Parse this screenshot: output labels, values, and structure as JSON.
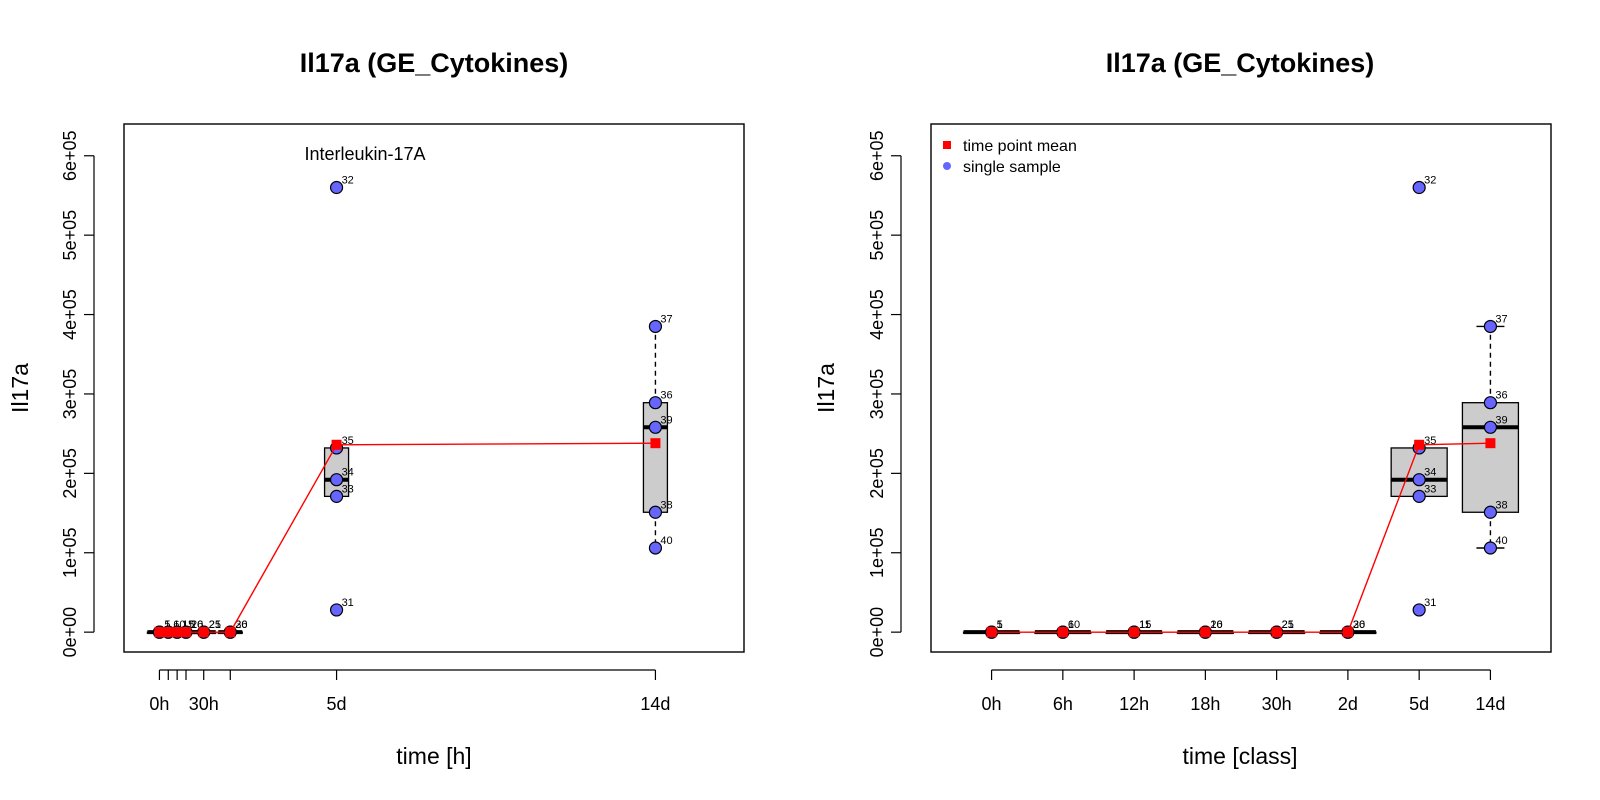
{
  "chart_data": [
    {
      "type": "scatter",
      "title": "Il17a (GE_Cytokines)",
      "xlabel": "time [h]",
      "ylabel": "Il17a",
      "annotation": "Interleukin-17A",
      "x_unit": "hours",
      "xlim": [
        -24,
        396
      ],
      "ylim": [
        -25000,
        640000
      ],
      "x_ticks": [
        0,
        6,
        12,
        18,
        30,
        48,
        120,
        336
      ],
      "x_tick_labels": [
        {
          "x": 0,
          "label": "0h"
        },
        {
          "x": 30,
          "label": "30h"
        },
        {
          "x": 120,
          "label": "5d"
        },
        {
          "x": 336,
          "label": "14d"
        }
      ],
      "y_ticks": [
        0,
        100000,
        200000,
        300000,
        400000,
        500000,
        600000
      ],
      "y_tick_labels": [
        "0e+00",
        "1e+05",
        "2e+05",
        "3e+05",
        "4e+05",
        "5e+05",
        "6e+05"
      ],
      "samples": [
        {
          "x": 0,
          "y": 0,
          "label": "5"
        },
        {
          "x": 0,
          "y": 0,
          "label": "1"
        },
        {
          "x": 6,
          "y": 0,
          "label": "10"
        },
        {
          "x": 6,
          "y": 0,
          "label": "6"
        },
        {
          "x": 12,
          "y": 0,
          "label": "15"
        },
        {
          "x": 12,
          "y": 0,
          "label": "11"
        },
        {
          "x": 18,
          "y": 0,
          "label": "20"
        },
        {
          "x": 18,
          "y": 0,
          "label": "16"
        },
        {
          "x": 30,
          "y": 0,
          "label": "25"
        },
        {
          "x": 30,
          "y": 0,
          "label": "21"
        },
        {
          "x": 48,
          "y": 0,
          "label": "30"
        },
        {
          "x": 48,
          "y": 0,
          "label": "26"
        },
        {
          "x": 120,
          "y": 560000,
          "label": "32"
        },
        {
          "x": 120,
          "y": 232000,
          "label": "35"
        },
        {
          "x": 120,
          "y": 192000,
          "label": "34"
        },
        {
          "x": 120,
          "y": 171000,
          "label": "33"
        },
        {
          "x": 120,
          "y": 28000,
          "label": "31"
        },
        {
          "x": 336,
          "y": 385000,
          "label": "37"
        },
        {
          "x": 336,
          "y": 289000,
          "label": "36"
        },
        {
          "x": 336,
          "y": 258000,
          "label": "39"
        },
        {
          "x": 336,
          "y": 151000,
          "label": "38"
        },
        {
          "x": 336,
          "y": 106000,
          "label": "40"
        }
      ],
      "boxes": [
        {
          "x": 0,
          "q1": 0,
          "median": 0,
          "q3": 0,
          "wlo": 0,
          "whi": 0
        },
        {
          "x": 6,
          "q1": 0,
          "median": 0,
          "q3": 0,
          "wlo": 0,
          "whi": 0
        },
        {
          "x": 12,
          "q1": 0,
          "median": 0,
          "q3": 0,
          "wlo": 0,
          "whi": 0
        },
        {
          "x": 18,
          "q1": 0,
          "median": 0,
          "q3": 0,
          "wlo": 0,
          "whi": 0
        },
        {
          "x": 30,
          "q1": 0,
          "median": 0,
          "q3": 0,
          "wlo": 0,
          "whi": 0
        },
        {
          "x": 48,
          "q1": 0,
          "median": 0,
          "q3": 0,
          "wlo": 0,
          "whi": 0
        },
        {
          "x": 120,
          "q1": 171000,
          "median": 192000,
          "q3": 232000,
          "wlo": 171000,
          "whi": 232000
        },
        {
          "x": 336,
          "q1": 151000,
          "median": 258000,
          "q3": 289000,
          "wlo": 106000,
          "whi": 385000
        }
      ],
      "means": [
        {
          "x": 0,
          "y": 0
        },
        {
          "x": 6,
          "y": 0
        },
        {
          "x": 12,
          "y": 0
        },
        {
          "x": 18,
          "y": 0
        },
        {
          "x": 30,
          "y": 0
        },
        {
          "x": 48,
          "y": 0
        },
        {
          "x": 120,
          "y": 236000
        },
        {
          "x": 336,
          "y": 238000
        }
      ],
      "colors": {
        "sample": "#6666ff",
        "mean": "#ff0000",
        "box": "#cccccc"
      }
    },
    {
      "type": "box",
      "title": "Il17a (GE_Cytokines)",
      "xlabel": "time [class]",
      "ylabel": "Il17a",
      "categories": [
        "0h",
        "6h",
        "12h",
        "18h",
        "30h",
        "2d",
        "5d",
        "14d"
      ],
      "xlim": [
        0.15,
        8.85
      ],
      "ylim": [
        -25000,
        640000
      ],
      "y_ticks": [
        0,
        100000,
        200000,
        300000,
        400000,
        500000,
        600000
      ],
      "y_tick_labels": [
        "0e+00",
        "1e+05",
        "2e+05",
        "3e+05",
        "4e+05",
        "5e+05",
        "6e+05"
      ],
      "legend": {
        "position": "top-left",
        "entries": [
          {
            "label": "time point mean",
            "marker": "square",
            "color": "#ff0000"
          },
          {
            "label": "single sample",
            "marker": "circle",
            "color": "#6666ff"
          }
        ]
      },
      "samples": [
        {
          "x": 1,
          "y": 0,
          "label": "5"
        },
        {
          "x": 1,
          "y": 0,
          "label": "1"
        },
        {
          "x": 2,
          "y": 0,
          "label": "10"
        },
        {
          "x": 2,
          "y": 0,
          "label": "6"
        },
        {
          "x": 3,
          "y": 0,
          "label": "15"
        },
        {
          "x": 3,
          "y": 0,
          "label": "11"
        },
        {
          "x": 4,
          "y": 0,
          "label": "20"
        },
        {
          "x": 4,
          "y": 0,
          "label": "16"
        },
        {
          "x": 5,
          "y": 0,
          "label": "25"
        },
        {
          "x": 5,
          "y": 0,
          "label": "21"
        },
        {
          "x": 6,
          "y": 0,
          "label": "30"
        },
        {
          "x": 6,
          "y": 0,
          "label": "26"
        },
        {
          "x": 7,
          "y": 560000,
          "label": "32"
        },
        {
          "x": 7,
          "y": 232000,
          "label": "35"
        },
        {
          "x": 7,
          "y": 192000,
          "label": "34"
        },
        {
          "x": 7,
          "y": 171000,
          "label": "33"
        },
        {
          "x": 7,
          "y": 28000,
          "label": "31"
        },
        {
          "x": 8,
          "y": 385000,
          "label": "37"
        },
        {
          "x": 8,
          "y": 289000,
          "label": "36"
        },
        {
          "x": 8,
          "y": 258000,
          "label": "39"
        },
        {
          "x": 8,
          "y": 151000,
          "label": "38"
        },
        {
          "x": 8,
          "y": 106000,
          "label": "40"
        }
      ],
      "boxes": [
        {
          "x": 1,
          "q1": 0,
          "median": 0,
          "q3": 0,
          "wlo": 0,
          "whi": 0
        },
        {
          "x": 2,
          "q1": 0,
          "median": 0,
          "q3": 0,
          "wlo": 0,
          "whi": 0
        },
        {
          "x": 3,
          "q1": 0,
          "median": 0,
          "q3": 0,
          "wlo": 0,
          "whi": 0
        },
        {
          "x": 4,
          "q1": 0,
          "median": 0,
          "q3": 0,
          "wlo": 0,
          "whi": 0
        },
        {
          "x": 5,
          "q1": 0,
          "median": 0,
          "q3": 0,
          "wlo": 0,
          "whi": 0
        },
        {
          "x": 6,
          "q1": 0,
          "median": 0,
          "q3": 0,
          "wlo": 0,
          "whi": 0
        },
        {
          "x": 7,
          "q1": 171000,
          "median": 192000,
          "q3": 232000,
          "wlo": 171000,
          "whi": 232000
        },
        {
          "x": 8,
          "q1": 151000,
          "median": 258000,
          "q3": 289000,
          "wlo": 106000,
          "whi": 385000
        }
      ],
      "means": [
        {
          "x": 1,
          "y": 0
        },
        {
          "x": 2,
          "y": 0
        },
        {
          "x": 3,
          "y": 0
        },
        {
          "x": 4,
          "y": 0
        },
        {
          "x": 5,
          "y": 0
        },
        {
          "x": 6,
          "y": 0
        },
        {
          "x": 7,
          "y": 236000
        },
        {
          "x": 8,
          "y": 238000
        }
      ],
      "colors": {
        "sample": "#6666ff",
        "mean": "#ff0000",
        "box": "#cccccc"
      }
    }
  ]
}
